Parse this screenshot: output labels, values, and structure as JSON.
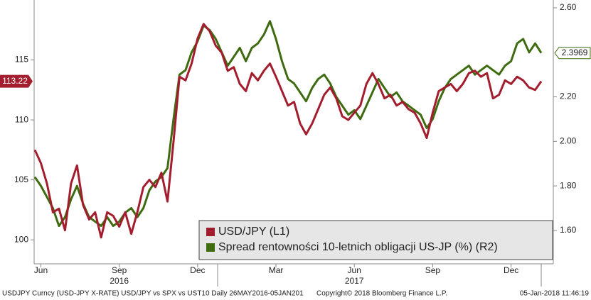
{
  "chart_data": {
    "type": "line",
    "categories": [
      null,
      "Jun",
      null,
      null,
      null,
      null,
      null,
      null,
      null,
      null,
      null,
      null,
      null,
      null,
      "Sep",
      null,
      null,
      null,
      null,
      null,
      null,
      null,
      null,
      null,
      null,
      null,
      null,
      "Dec",
      null,
      null,
      null,
      null,
      null,
      null,
      null,
      null,
      null,
      null,
      null,
      null,
      "Mar",
      null,
      null,
      null,
      null,
      null,
      null,
      null,
      null,
      null,
      null,
      null,
      null,
      "Jun",
      null,
      null,
      null,
      null,
      null,
      null,
      null,
      null,
      null,
      null,
      null,
      null,
      "Sep",
      null,
      null,
      null,
      null,
      null,
      null,
      null,
      null,
      null,
      null,
      null,
      null,
      "Dec",
      null,
      null,
      null,
      null,
      null
    ],
    "year_categories": [
      null,
      null,
      null,
      null,
      null,
      null,
      null,
      null,
      null,
      null,
      null,
      null,
      null,
      null,
      "2016",
      null,
      null,
      null,
      null,
      null,
      null,
      null,
      null,
      null,
      null,
      null,
      null,
      null,
      null,
      null,
      null,
      null,
      null,
      null,
      null,
      null,
      null,
      null,
      null,
      null,
      null,
      null,
      null,
      null,
      null,
      null,
      null,
      null,
      null,
      null,
      null,
      null,
      null,
      "2017",
      null,
      null,
      null,
      null,
      null,
      null,
      null,
      null,
      null,
      null,
      null,
      null,
      null,
      null,
      null,
      null,
      null,
      null,
      null,
      null,
      null,
      null,
      null,
      null,
      null,
      null,
      null,
      null,
      null,
      null,
      null
    ],
    "series": [
      {
        "name": "USD/JPY (L1)",
        "color": "#a31d2e",
        "axis": "y",
        "values": [
          107.5,
          106.4,
          104.7,
          102.3,
          102.6,
          100.8,
          104.7,
          106.2,
          102.9,
          101.7,
          102.3,
          100.2,
          102.3,
          102.0,
          101.1,
          102.3,
          100.5,
          102.3,
          104.4,
          105.0,
          104.4,
          105.6,
          103.2,
          108.2,
          113.6,
          113.3,
          114.7,
          116.8,
          118.0,
          117.4,
          116.2,
          115.6,
          114.1,
          114.4,
          113.0,
          112.4,
          113.9,
          113.3,
          114.1,
          114.7,
          113.6,
          112.4,
          111.2,
          111.5,
          109.7,
          108.8,
          109.7,
          110.9,
          112.1,
          112.7,
          111.8,
          110.3,
          110.0,
          110.6,
          111.2,
          113.0,
          113.9,
          113.0,
          111.8,
          112.1,
          111.2,
          111.5,
          110.9,
          110.6,
          109.7,
          108.5,
          110.6,
          112.4,
          112.7,
          113.0,
          112.4,
          113.0,
          113.9,
          114.1,
          113.6,
          113.9,
          111.8,
          112.1,
          113.3,
          113.0,
          113.6,
          113.3,
          112.7,
          112.5,
          113.22
        ],
        "value_labels": [
          null,
          null,
          null,
          null,
          null,
          null,
          null,
          null,
          null,
          null,
          null,
          null,
          null,
          null,
          null,
          null,
          null,
          null,
          null,
          null,
          null,
          null,
          null,
          null,
          null,
          null,
          null,
          null,
          null,
          null,
          null,
          null,
          null,
          null,
          null,
          null,
          null,
          null,
          null,
          null,
          null,
          null,
          null,
          null,
          null,
          null,
          null,
          null,
          null,
          null,
          null,
          null,
          null,
          null,
          null,
          null,
          null,
          null,
          null,
          null,
          null,
          null,
          null,
          null,
          null,
          null,
          null,
          null,
          null,
          null,
          null,
          null,
          null,
          null,
          null,
          null,
          null,
          null,
          null,
          null,
          null,
          null,
          null,
          null,
          "113.22"
        ]
      },
      {
        "name": "Spread rentowności 10-letnich obligacji US-JP (%) (R2)",
        "color": "#3f6b10",
        "axis": "y2",
        "values": [
          1.84,
          1.8,
          1.75,
          1.7,
          1.62,
          1.66,
          1.74,
          1.8,
          1.72,
          1.66,
          1.64,
          1.62,
          1.66,
          1.62,
          1.64,
          1.68,
          1.7,
          1.66,
          1.7,
          1.78,
          1.82,
          1.84,
          1.88,
          2.1,
          2.3,
          2.32,
          2.4,
          2.45,
          2.52,
          2.5,
          2.46,
          2.4,
          2.34,
          2.38,
          2.42,
          2.36,
          2.42,
          2.44,
          2.48,
          2.54,
          2.46,
          2.36,
          2.28,
          2.26,
          2.22,
          2.18,
          2.24,
          2.28,
          2.3,
          2.26,
          2.2,
          2.16,
          2.12,
          2.14,
          2.1,
          2.16,
          2.22,
          2.28,
          2.24,
          2.2,
          2.22,
          2.18,
          2.16,
          2.14,
          2.12,
          2.06,
          2.1,
          2.18,
          2.24,
          2.28,
          2.3,
          2.32,
          2.34,
          2.3,
          2.32,
          2.34,
          2.32,
          2.3,
          2.34,
          2.36,
          2.44,
          2.46,
          2.4,
          2.44,
          2.3969
        ],
        "value_labels": [
          null,
          null,
          null,
          null,
          null,
          null,
          null,
          null,
          null,
          null,
          null,
          null,
          null,
          null,
          null,
          null,
          null,
          null,
          null,
          null,
          null,
          null,
          null,
          null,
          null,
          null,
          null,
          null,
          null,
          null,
          null,
          null,
          null,
          null,
          null,
          null,
          null,
          null,
          null,
          null,
          null,
          null,
          null,
          null,
          null,
          null,
          null,
          null,
          null,
          null,
          null,
          null,
          null,
          null,
          null,
          null,
          null,
          null,
          null,
          null,
          null,
          null,
          null,
          null,
          null,
          null,
          null,
          null,
          null,
          null,
          null,
          null,
          null,
          null,
          null,
          null,
          null,
          null,
          null,
          null,
          null,
          null,
          null,
          null,
          "2.3969"
        ]
      }
    ],
    "ylim": [
      98,
      120
    ],
    "yticks": [
      100,
      105,
      110,
      115
    ],
    "y2lim": [
      1.45,
      2.635
    ],
    "y2ticks": [
      {
        "value": 1.6,
        "label": "1.60"
      },
      {
        "value": 1.8,
        "label": "1.80"
      },
      {
        "value": 2.0,
        "label": "2.00"
      },
      {
        "value": 2.2,
        "label": "2.20"
      },
      {
        "value": 2.6,
        "label": "2.60"
      }
    ],
    "legend": "lower right",
    "grid": false,
    "footer": [
      "USDJPY Curncy (USD-JPY X-RATE) USD/JPY vs SPX vs UST10  Daily 26MAY2016-05JAN201",
      "Copyright© 2018 Bloomberg Finance L.P.",
      "05-Jan-2018 11:46:19"
    ]
  }
}
